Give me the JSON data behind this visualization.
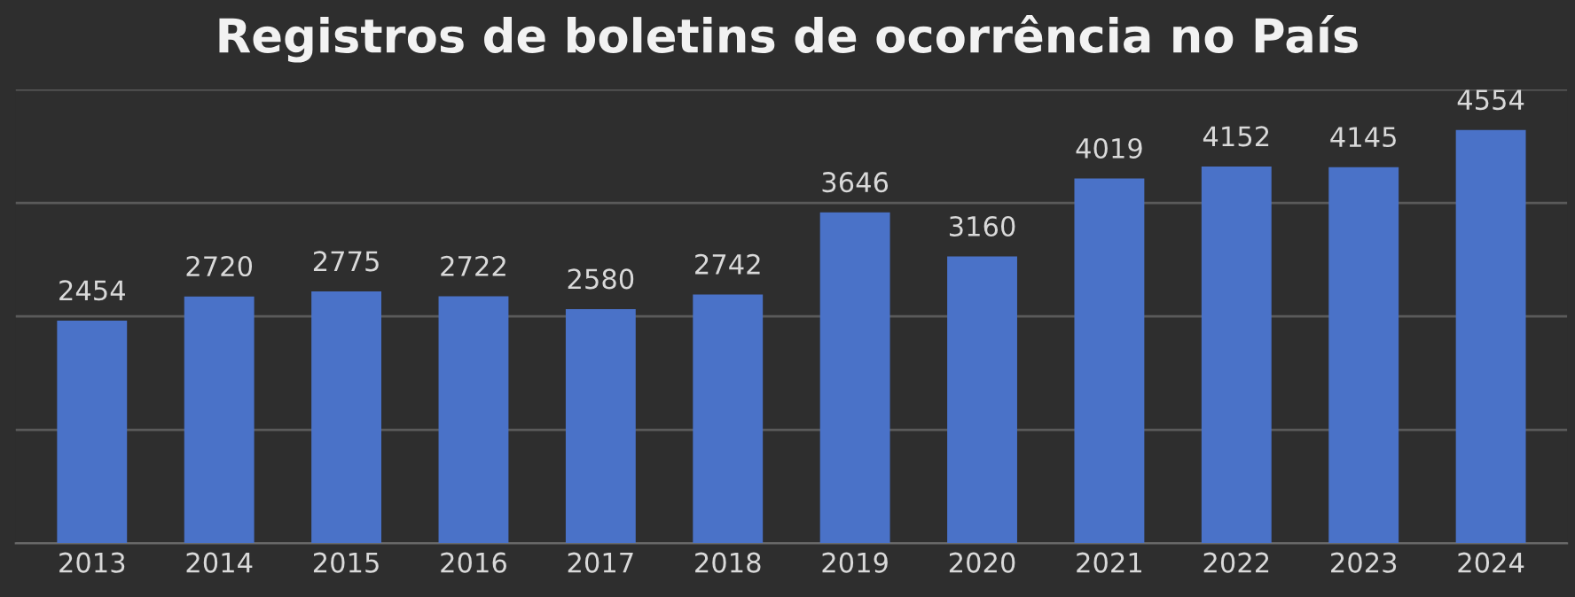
{
  "chart_data": {
    "type": "bar",
    "title": "Registros de boletins de ocorrência no País",
    "categories": [
      "2013",
      "2014",
      "2015",
      "2016",
      "2017",
      "2018",
      "2019",
      "2020",
      "2021",
      "2022",
      "2023",
      "2024"
    ],
    "values": [
      2454,
      2720,
      2775,
      2722,
      2580,
      2742,
      3646,
      3160,
      4019,
      4152,
      4145,
      4554
    ],
    "color": "#4a72c8",
    "data_labels": true,
    "grid": "y",
    "tick_labels": "x",
    "ylim": [
      0,
      5000
    ],
    "yticks": [
      {
        "value": 0,
        "label": null
      },
      {
        "value": 1250,
        "label": null
      },
      {
        "value": 2500,
        "label": null
      },
      {
        "value": 3750,
        "label": null
      },
      {
        "value": 5000,
        "label": null
      }
    ]
  }
}
